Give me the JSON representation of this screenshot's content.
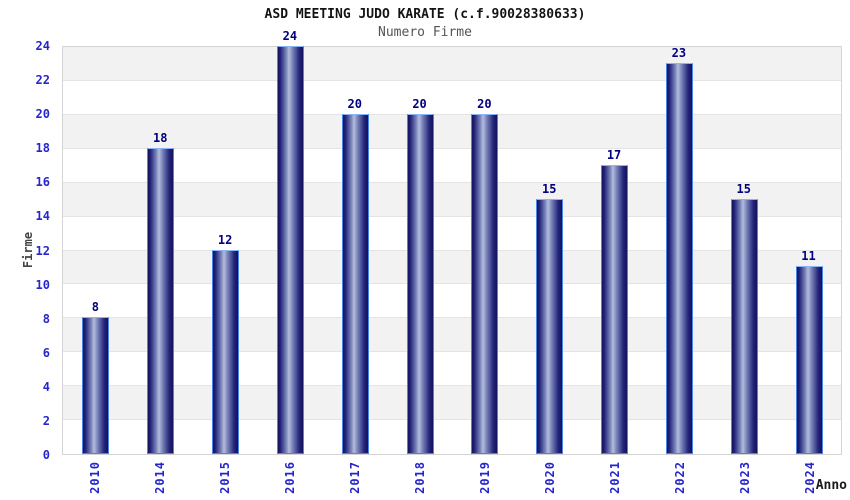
{
  "header": {
    "title": "ASD MEETING JUDO KARATE (c.f.90028380633)",
    "subtitle": "Numero Firme"
  },
  "chart_data": {
    "type": "bar",
    "title": "ASD MEETING JUDO KARATE (c.f.90028380633)",
    "subtitle": "Numero Firme",
    "xlabel": "Anno",
    "ylabel": "Firme",
    "categories": [
      "2010",
      "2014",
      "2015",
      "2016",
      "2017",
      "2018",
      "2019",
      "2020",
      "2021",
      "2022",
      "2023",
      "2024"
    ],
    "values": [
      8,
      18,
      12,
      24,
      20,
      20,
      20,
      15,
      17,
      23,
      15,
      11
    ],
    "ylim": [
      0,
      24
    ],
    "ytick_step": 2,
    "ytick_labels": [
      "0",
      "2",
      "4",
      "6",
      "8",
      "10",
      "12",
      "14",
      "16",
      "18",
      "20",
      "22",
      "24"
    ],
    "grid": true,
    "legend": "none",
    "colors": {
      "bar_dark": "#12125c",
      "bar_light": "#b4bcdc",
      "bar_border": "#4a86e8",
      "bar_border_top": "#8ab4f8",
      "value_label": "#000080",
      "tick_label": "#2626cc",
      "band_gray": "#f2f2f2",
      "band_white": "#ffffff",
      "gridline": "#e4e4e4",
      "title": "#141414",
      "subtitle": "#555555",
      "axis_title": "#444444"
    }
  }
}
